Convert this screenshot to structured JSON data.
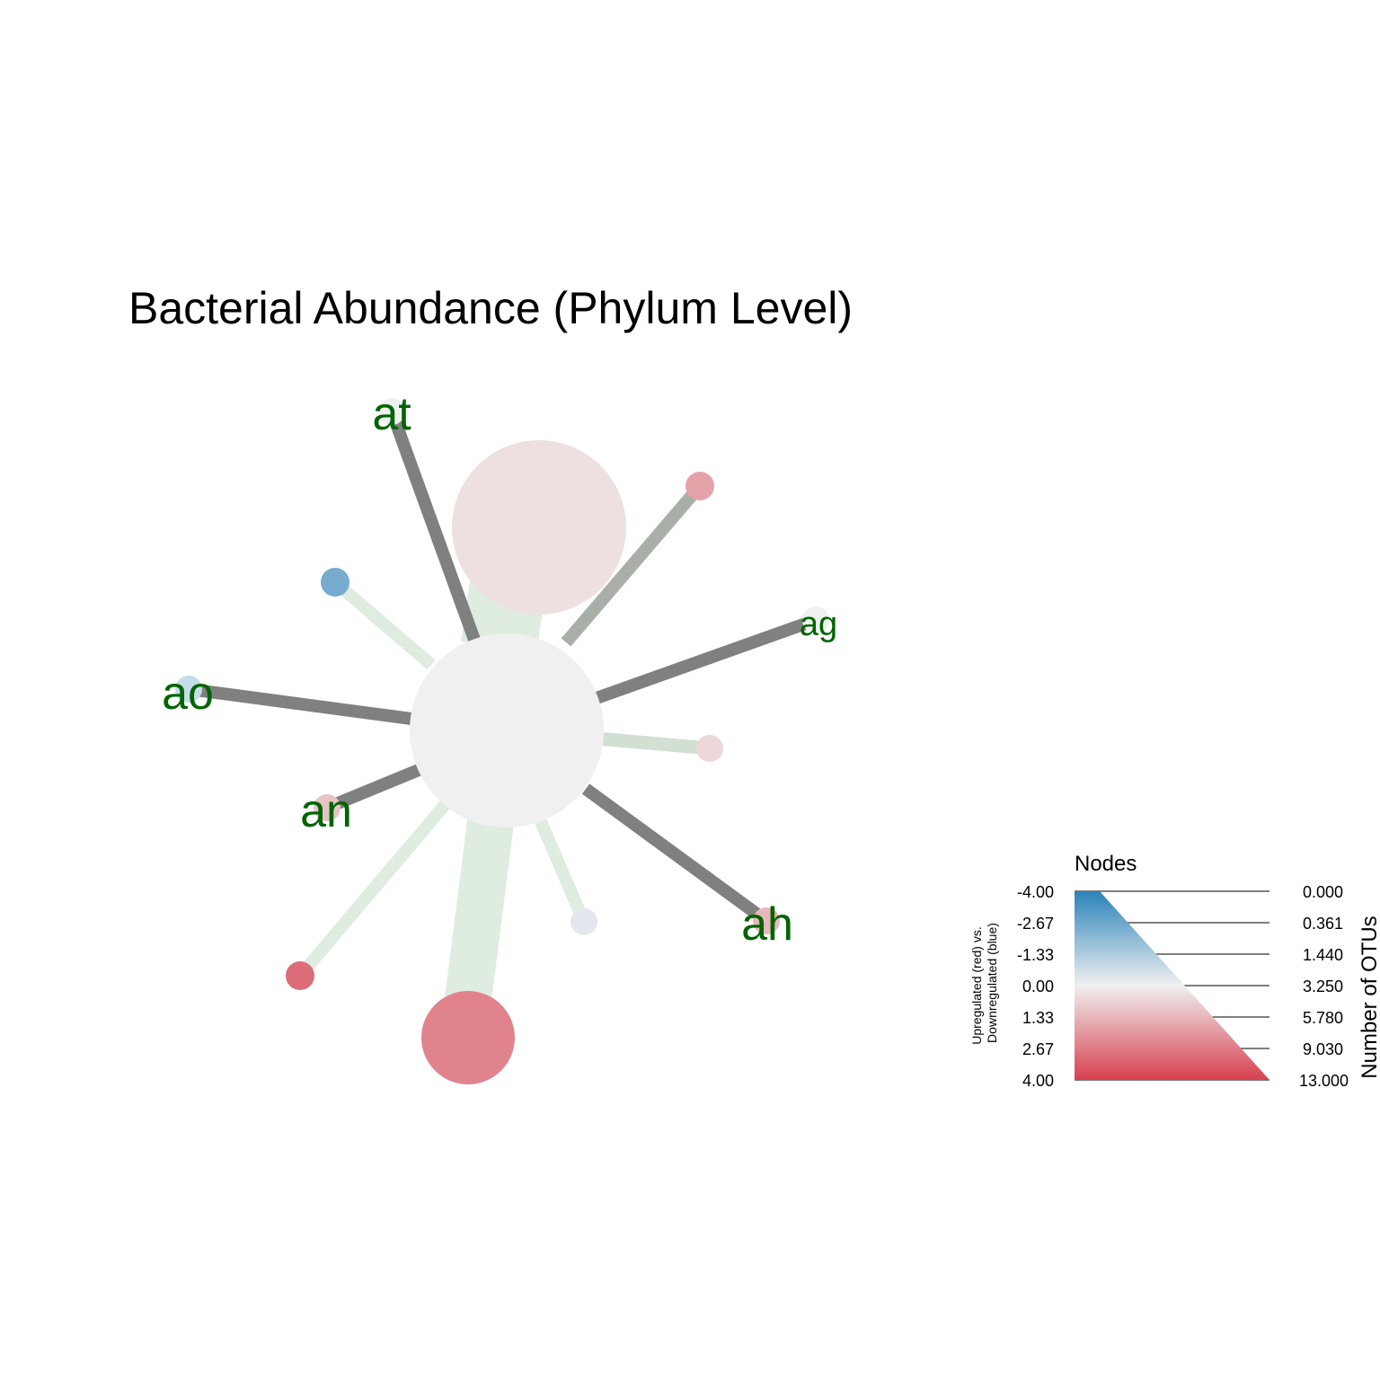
{
  "title": "Bacterial Abundance (Phylum Level)",
  "colors": {
    "label": "#006400",
    "edge_dark": "#808080",
    "edge_mid": "#a9aea9",
    "edge_light": "#dfece0",
    "scale_blue": "#2b83ba",
    "scale_neutral": "#f0f0f0",
    "scale_red": "#d7404f"
  },
  "nodes": [
    {
      "id": "center",
      "label": "",
      "color": "#f0f0f0"
    },
    {
      "id": "top",
      "label": "",
      "color": "#eee0e1"
    },
    {
      "id": "bottom",
      "label": "",
      "color": "#e0838d"
    },
    {
      "id": "at",
      "label": "at",
      "color": "#f0f0f0"
    },
    {
      "id": "ag",
      "label": "ag",
      "color": "#f0f0f0"
    },
    {
      "id": "ao",
      "label": "ao",
      "color": "#c6dcea"
    },
    {
      "id": "an",
      "label": "an",
      "color": "#e7c3c7"
    },
    {
      "id": "ah",
      "label": "ah",
      "color": "#e9b8bd"
    },
    {
      "id": "blue-leaf",
      "label": "",
      "color": "#77abcf"
    },
    {
      "id": "pink-leaf-top",
      "label": "",
      "color": "#e4a3a9"
    },
    {
      "id": "pink-leaf-right",
      "label": "",
      "color": "#eed7d9"
    },
    {
      "id": "red-leaf",
      "label": "",
      "color": "#dc6c78"
    },
    {
      "id": "grey-leaf",
      "label": "",
      "color": "#e3e8ee"
    }
  ],
  "legend": {
    "title": "Nodes",
    "left_axis_label_line1": "Upregulated (red) vs.",
    "left_axis_label_line2": "Downregulated (blue)",
    "left_ticks": [
      "-4.00",
      "-2.67",
      "-1.33",
      "0.00",
      "1.33",
      "2.67",
      "4.00"
    ],
    "right_ticks": [
      "0.000",
      "0.361",
      "1.440",
      "3.250",
      "5.780",
      "9.030",
      "13.000"
    ],
    "right_axis_label": "Number of OTUs"
  }
}
